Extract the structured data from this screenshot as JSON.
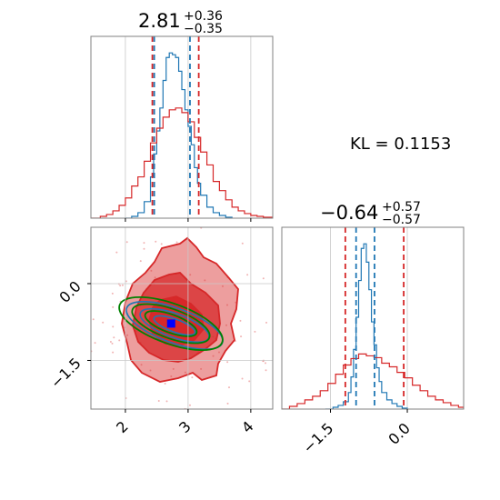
{
  "chart_data": [
    {
      "type": "histogram",
      "panel": "top-left",
      "title": "2.81",
      "title_sup": "+0.36",
      "title_sub": "−0.35",
      "xlim": [
        1.45,
        4.35
      ],
      "grid": true,
      "series": [
        {
          "color": "#1f77b4",
          "x": [
            2.0,
            2.1,
            2.2,
            2.3,
            2.4,
            2.45,
            2.5,
            2.55,
            2.6,
            2.65,
            2.7,
            2.75,
            2.8,
            2.85,
            2.9,
            2.95,
            3.0,
            3.05,
            3.1,
            3.15,
            3.2,
            3.3,
            3.4,
            3.5,
            3.6,
            3.7
          ],
          "values": [
            0,
            2,
            6,
            18,
            45,
            70,
            95,
            120,
            150,
            175,
            180,
            178,
            175,
            160,
            140,
            118,
            100,
            80,
            55,
            38,
            25,
            12,
            6,
            3,
            1,
            0
          ]
        },
        {
          "color": "#d62728",
          "x": [
            1.45,
            1.6,
            1.7,
            1.8,
            1.9,
            2.0,
            2.1,
            2.2,
            2.3,
            2.4,
            2.5,
            2.6,
            2.7,
            2.8,
            2.9,
            3.0,
            3.1,
            3.2,
            3.3,
            3.4,
            3.5,
            3.6,
            3.7,
            3.8,
            3.9,
            4.0,
            4.1,
            4.2,
            4.35
          ],
          "values": [
            0,
            2,
            4,
            8,
            14,
            22,
            35,
            45,
            62,
            82,
            98,
            110,
            118,
            120,
            115,
            105,
            88,
            72,
            58,
            40,
            30,
            20,
            12,
            8,
            5,
            3,
            2,
            1,
            0
          ]
        }
      ],
      "vlines": [
        {
          "x": 2.43,
          "color": "#d62728"
        },
        {
          "x": 2.46,
          "color": "#1f77b4"
        },
        {
          "x": 3.03,
          "color": "#1f77b4"
        },
        {
          "x": 3.17,
          "color": "#d62728"
        }
      ]
    },
    {
      "type": "contour",
      "panel": "bottom-left",
      "xlim": [
        1.45,
        4.35
      ],
      "ylim": [
        -2.45,
        1.1
      ],
      "xticks": [
        "2",
        "3",
        "4"
      ],
      "yticks": [
        "0.0",
        "−1.5"
      ],
      "grid": true,
      "marker": {
        "x": 2.73,
        "y": -0.78,
        "color": "#0000ff",
        "shape": "square"
      },
      "series": [
        {
          "name": "red-filled-density",
          "color": "#d62728"
        },
        {
          "name": "blue-contours",
          "color": "#1f77b4"
        },
        {
          "name": "green-contours",
          "color": "#008000"
        }
      ]
    },
    {
      "type": "histogram",
      "panel": "bottom-right",
      "title": "−0.64",
      "title_sup": "+0.57",
      "title_sub": "−0.57",
      "xlim": [
        -2.45,
        1.1
      ],
      "xticks": [
        "−1.5",
        "0.0"
      ],
      "grid": true,
      "series": [
        {
          "color": "#1f77b4",
          "x": [
            -1.6,
            -1.45,
            -1.35,
            -1.25,
            -1.15,
            -1.1,
            -1.05,
            -1.0,
            -0.95,
            -0.9,
            -0.85,
            -0.8,
            -0.75,
            -0.7,
            -0.65,
            -0.6,
            -0.55,
            -0.5,
            -0.4,
            -0.3,
            -0.2,
            -0.1,
            0.0
          ],
          "values": [
            0,
            2,
            4,
            8,
            18,
            35,
            65,
            100,
            140,
            175,
            180,
            160,
            130,
            95,
            70,
            45,
            30,
            18,
            10,
            6,
            3,
            1,
            0
          ]
        },
        {
          "color": "#d62728",
          "x": [
            -2.45,
            -2.3,
            -2.15,
            -2.0,
            -1.85,
            -1.7,
            -1.55,
            -1.4,
            -1.25,
            -1.1,
            -0.95,
            -0.8,
            -0.65,
            -0.5,
            -0.35,
            -0.2,
            -0.05,
            0.1,
            0.25,
            0.4,
            0.55,
            0.7,
            0.85,
            1.0,
            1.1
          ],
          "values": [
            0,
            3,
            6,
            10,
            14,
            20,
            28,
            38,
            48,
            55,
            60,
            58,
            56,
            50,
            46,
            40,
            34,
            26,
            20,
            14,
            10,
            7,
            4,
            2,
            0
          ]
        }
      ],
      "vlines": [
        {
          "x": -1.21,
          "color": "#d62728"
        },
        {
          "x": -1.0,
          "color": "#1f77b4"
        },
        {
          "x": -0.64,
          "color": "#1f77b4"
        },
        {
          "x": -0.07,
          "color": "#d62728"
        }
      ]
    }
  ],
  "kl_text": "KL = 0.1153",
  "colors": {
    "blue": "#1f77b4",
    "red": "#d62728",
    "green": "#008000",
    "marker": "#0000ff"
  }
}
